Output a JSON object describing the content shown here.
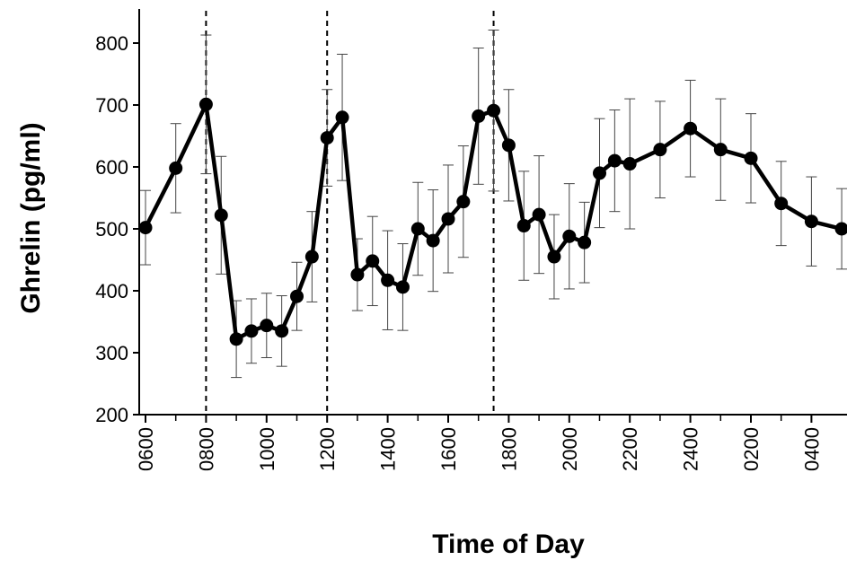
{
  "chart_data": {
    "type": "line",
    "xlabel": "Time of Day",
    "ylabel": "Ghrelin (pg/ml)",
    "ylim": [
      200,
      850
    ],
    "yticks": [
      200,
      300,
      400,
      500,
      600,
      700,
      800
    ],
    "x_tick_labels": [
      "0600",
      "0800",
      "1000",
      "1200",
      "1400",
      "1600",
      "1800",
      "2000",
      "2200",
      "2400",
      "0200",
      "0400"
    ],
    "x_tick_hours": [
      0,
      2,
      4,
      6,
      8,
      10,
      12,
      14,
      16,
      18,
      20,
      22
    ],
    "meal_markers_hours": [
      2,
      6,
      11.5
    ],
    "grid": false,
    "legend": "none",
    "series": [
      {
        "x_hours": [
          0,
          1,
          2,
          2.5,
          3,
          3.5,
          4,
          4.5,
          5,
          5.5,
          6,
          6.5,
          7,
          7.5,
          8,
          8.5,
          9,
          9.5,
          10,
          10.5,
          11,
          11.5,
          12,
          12.5,
          13,
          13.5,
          14,
          14.5,
          15,
          15.5,
          16,
          17,
          18,
          19,
          20,
          21,
          22,
          23
        ],
        "y": [
          502,
          598,
          701,
          522,
          322,
          335,
          344,
          335,
          391,
          455,
          647,
          680,
          426,
          448,
          417,
          406,
          500,
          481,
          516,
          544,
          682,
          691,
          635,
          505,
          523,
          455,
          488,
          478,
          590,
          610,
          605,
          628,
          662,
          628,
          614,
          541,
          512,
          500
        ],
        "error": [
          60,
          72,
          112,
          95,
          62,
          52,
          52,
          57,
          55,
          73,
          78,
          102,
          58,
          72,
          80,
          70,
          75,
          82,
          87,
          90,
          110,
          130,
          90,
          88,
          95,
          68,
          85,
          65,
          88,
          82,
          105,
          78,
          78,
          82,
          72,
          68,
          72,
          65
        ]
      }
    ]
  }
}
